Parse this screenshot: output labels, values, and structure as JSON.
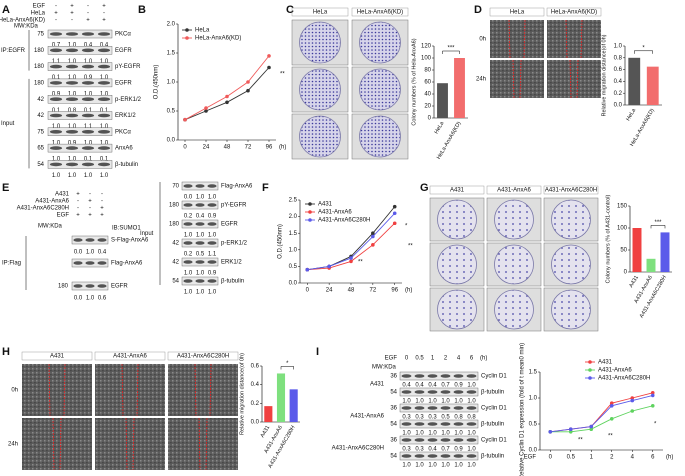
{
  "panel_labels": [
    "A",
    "B",
    "C",
    "D",
    "E",
    "F",
    "G",
    "H",
    "I"
  ],
  "blot_a": {
    "mw_header": "MW:KDa",
    "conditions": [
      {
        "label": "EGF",
        "signs": [
          "-",
          "+",
          "-",
          "+"
        ]
      },
      {
        "label": "HeLa",
        "signs": [
          "+",
          "+",
          "-",
          "-"
        ]
      },
      {
        "label": "HeLa-AnxA6(KD)",
        "signs": [
          "-",
          "-",
          "+",
          "+"
        ]
      }
    ],
    "groups": [
      {
        "label": "IP:EGFR",
        "rows": [
          {
            "mw": 75,
            "label": "PKCα",
            "values": [
              "0.7",
              "1.0",
              "0.4",
              "0.4"
            ]
          },
          {
            "mw": 180,
            "label": "EGFR",
            "values": [
              "1.1",
              "1.0",
              "1.0",
              "1.0"
            ]
          },
          {
            "mw": 180,
            "label": "pY-EGFR",
            "values": [
              "0.1",
              "1.0",
              "0.9",
              "1.0"
            ]
          }
        ]
      },
      {
        "label": "Input",
        "rows": [
          {
            "mw": 180,
            "label": "EGFR",
            "values": [
              "0.9",
              "1.0",
              "1.0",
              "1.0"
            ]
          },
          {
            "mw": 42,
            "label": "p-ERK1/2",
            "values": [
              "0.1",
              "0.8",
              "0.1",
              "0.1"
            ]
          },
          {
            "mw": 42,
            "label": "ERK1/2",
            "values": [
              "1.0",
              "1.0",
              "1.1",
              "1.0"
            ]
          },
          {
            "mw": 75,
            "label": "PKCα",
            "values": [
              "1.0",
              "0.9",
              "1.0",
              "1.0"
            ]
          },
          {
            "mw": 65,
            "label": "AnxA6",
            "values": [
              "1.0",
              "1.0",
              "0.1",
              "0.1"
            ]
          },
          {
            "mw": 54,
            "label": "β-tubulin",
            "values": [
              "1.0",
              "1.0",
              "1.0",
              "1.0"
            ]
          }
        ]
      }
    ]
  },
  "blot_e_left": {
    "mw_header": "MW:KDa",
    "ib": "IB:SUMO1",
    "conditions": [
      {
        "label": "A431",
        "signs": [
          "+",
          "-",
          "-"
        ]
      },
      {
        "label": "A431-AnxA6",
        "signs": [
          "-",
          "+",
          "-"
        ]
      },
      {
        "label": "A431-AnxA6C280H",
        "signs": [
          "-",
          "-",
          "+"
        ]
      },
      {
        "label": "EGF",
        "signs": [
          "+",
          "+",
          "+"
        ]
      }
    ],
    "groups": [
      {
        "label": "IP:Flag",
        "rows": [
          {
            "label": "S-Flag-AnxA6",
            "values": [
              "0.0",
              "1.0",
              "0.4"
            ]
          },
          {
            "label": "Flag-AnxA6"
          },
          {
            "mw": 180,
            "label": "EGFR",
            "values": [
              "0.0",
              "1.0",
              "0.6"
            ]
          }
        ]
      }
    ]
  },
  "blot_e_right": {
    "groups": [
      {
        "label": "Input",
        "rows": [
          {
            "mw": 70,
            "label": "Flag-AnxA6",
            "values": [
              "0.0",
              "1.0",
              "1.0"
            ]
          },
          {
            "mw": 180,
            "label": "pY-EGFR",
            "values": [
              "0.2",
              "0.4",
              "0.9"
            ]
          },
          {
            "mw": 180,
            "label": "EGFR",
            "values": [
              "1.0",
              "1.0",
              "1.0"
            ]
          },
          {
            "mw": 42,
            "label": "p-ERK1/2",
            "values": [
              "0.2",
              "0.5",
              "1.1"
            ]
          },
          {
            "mw": 42,
            "label": "ERK1/2",
            "values": [
              "1.0",
              "1.0",
              "0.9"
            ]
          },
          {
            "mw": 54,
            "label": "β-tubulin",
            "values": [
              "1.0",
              "1.0",
              "1.0"
            ]
          }
        ]
      }
    ]
  },
  "blot_i": {
    "mw_header": "MW:KDa",
    "conditions": [
      {
        "label": "EGF",
        "signs": [
          "0",
          "0.5",
          "1",
          "2",
          "4",
          "6"
        ]
      }
    ],
    "unit": "(h)",
    "groups": [
      {
        "label": "A431",
        "rows": [
          {
            "mw": 36,
            "label": "Cyclin D1",
            "values": [
              "0.4",
              "0.4",
              "0.4",
              "0.7",
              "0.9",
              "1.0"
            ]
          },
          {
            "mw": 54,
            "label": "β-tubulin",
            "values": [
              "1.0",
              "1.0",
              "1.0",
              "1.0",
              "1.0",
              "1.0"
            ]
          }
        ]
      },
      {
        "label": "A431-AnxA6",
        "rows": [
          {
            "mw": 36,
            "label": "Cyclin D1",
            "values": [
              "0.3",
              "0.3",
              "0.3",
              "0.5",
              "0.8",
              "0.8"
            ]
          },
          {
            "mw": 54,
            "label": "β-tubulin",
            "values": [
              "1.0",
              "1.0",
              "1.0",
              "1.0",
              "1.0",
              "1.0"
            ]
          }
        ]
      },
      {
        "label": "A431-AnxA6C280H",
        "rows": [
          {
            "mw": 36,
            "label": "Cyclin D1",
            "values": [
              "0.3",
              "0.3",
              "0.4",
              "0.7",
              "0.9",
              "1.0"
            ]
          },
          {
            "mw": 54,
            "label": "β-tubulin",
            "values": [
              "1.0",
              "1.0",
              "1.0",
              "1.0",
              "1.0",
              "1.0"
            ]
          }
        ]
      }
    ]
  },
  "plates_c": {
    "columns": [
      "HeLa",
      "HeLa-AnxA6(KD)"
    ]
  },
  "wound_d": {
    "columns": [
      "HeLa",
      "HeLa-AnxA6(KD)"
    ],
    "rows": [
      "0h",
      "24h"
    ]
  },
  "plates_g": {
    "columns": [
      "A431",
      "A431-AnxA6",
      "A431-AnxA6C280H"
    ]
  },
  "wound_h": {
    "columns": [
      "A431",
      "A431-AnxA6",
      "A431-AnxA6C280H"
    ],
    "rows": [
      "0h",
      "24h"
    ]
  },
  "chart_data": [
    {
      "type": "line",
      "ylabel": "O.D.(450nm)",
      "xlabel": "(h)",
      "x": [
        0,
        24,
        48,
        72,
        96
      ],
      "xlim": [
        -8,
        104
      ],
      "xticks": [
        0,
        24,
        48,
        72,
        96
      ],
      "ylim": [
        0,
        2
      ],
      "yticks": [
        {
          "value": 0,
          "label": "0.0"
        },
        0.5,
        {
          "value": 1,
          "label": "1.0"
        },
        1.5,
        {
          "value": 2,
          "label": "2.0"
        }
      ],
      "series": [
        {
          "name": "HeLa",
          "color": "#333333",
          "values": [
            0.35,
            0.5,
            0.65,
            0.85,
            1.25
          ]
        },
        {
          "name": "HeLa-AnxA6(KD)",
          "color": "#f05a5a",
          "values": [
            0.35,
            0.55,
            0.75,
            1.0,
            1.45
          ]
        }
      ],
      "annotations": [
        "**"
      ]
    },
    {
      "type": "bar",
      "ylabel": "Colony numbers (% of Hela-AnxA6)",
      "categories": [
        "HeLa",
        "HeLa-AnxA6(KD)"
      ],
      "values": [
        58,
        100
      ],
      "colors": [
        "#555555",
        "#f26d6d"
      ],
      "ylim": [
        0,
        120
      ],
      "yticks": [
        0,
        20,
        40,
        60,
        80,
        100,
        120
      ],
      "annotations": [
        "***"
      ]
    },
    {
      "type": "bar",
      "ylabel": "Relative migration distance(of 0h)",
      "categories": [
        "HeLa",
        "HeLa-AnxA6(KD)"
      ],
      "values": [
        0.8,
        0.65
      ],
      "colors": [
        "#555555",
        "#f26d6d"
      ],
      "ylim": [
        0,
        1
      ],
      "yticks": [
        {
          "value": 0,
          "label": "0.0"
        },
        0.2,
        0.4,
        0.6,
        0.8,
        {
          "value": 1,
          "label": "1.0"
        }
      ],
      "annotations": [
        "*"
      ]
    },
    {
      "type": "line",
      "ylabel": "O.D.(450nm)",
      "xlabel": "(h)",
      "x": [
        0,
        24,
        48,
        72,
        96
      ],
      "xlim": [
        -8,
        104
      ],
      "xticks": [
        0,
        24,
        48,
        72,
        96
      ],
      "ylim": [
        0,
        2.5
      ],
      "yticks": [
        {
          "value": 0,
          "label": "0.0"
        },
        0.5,
        {
          "value": 1,
          "label": "1.0"
        },
        1.5,
        {
          "value": 2,
          "label": "2.0"
        },
        2.5
      ],
      "series": [
        {
          "name": "A431",
          "color": "#333333",
          "values": [
            0.4,
            0.5,
            0.8,
            1.5,
            2.3
          ]
        },
        {
          "name": "A431-AnxA6",
          "color": "#f04040",
          "values": [
            0.4,
            0.45,
            0.65,
            1.15,
            1.8
          ]
        },
        {
          "name": "A431-AnxA6C280H",
          "color": "#5b5bea",
          "values": [
            0.4,
            0.5,
            0.75,
            1.4,
            2.1
          ]
        }
      ],
      "annotations": [
        "*",
        "**",
        "**"
      ]
    },
    {
      "type": "bar",
      "ylabel": "Colony numbers (% of A431-control)",
      "categories": [
        "A431",
        "A431-AnxA6",
        "A431-AnxA6C280H"
      ],
      "values": [
        100,
        30,
        90
      ],
      "colors": [
        "#f04040",
        "#7ee07e",
        "#5b5bea"
      ],
      "ylim": [
        0,
        150
      ],
      "yticks": [
        0,
        50,
        100,
        150
      ],
      "annotations": [
        "***"
      ]
    },
    {
      "type": "bar",
      "ylabel": "Relative migration distance(of 0h)",
      "categories": [
        "A431",
        "A431-AnxA6",
        "A431-AnxA6C280H"
      ],
      "values": [
        0.17,
        0.52,
        0.35
      ],
      "colors": [
        "#f04040",
        "#7ee07e",
        "#5b5bea"
      ],
      "ylim": [
        0,
        0.6
      ],
      "yticks": [
        {
          "value": 0,
          "label": "0.0"
        },
        0.2,
        0.4,
        0.6
      ],
      "annotations": [
        "*"
      ]
    },
    {
      "type": "line",
      "ylabel": "Relative Cyclin D1 expression (fold of t mean0 min)",
      "xlabel": "(h)",
      "x_prefix": "EGF",
      "categories": [
        "0",
        "0.5",
        "1",
        "2",
        "4",
        "6"
      ],
      "ylim": [
        0,
        1.5
      ],
      "yticks": [
        {
          "value": 0,
          "label": "0.0"
        },
        0.5,
        {
          "value": 1,
          "label": "1.0"
        },
        1.5
      ],
      "series": [
        {
          "name": "A431",
          "color": "#f04040",
          "values": [
            0.35,
            0.4,
            0.45,
            0.9,
            1.0,
            1.1
          ]
        },
        {
          "name": "A431-AnxA6",
          "color": "#5fd35f",
          "values": [
            0.35,
            0.35,
            0.4,
            0.6,
            0.75,
            0.85
          ]
        },
        {
          "name": "A431-AnxA6C280H",
          "color": "#5b5bea",
          "values": [
            0.35,
            0.4,
            0.45,
            0.85,
            0.95,
            1.05
          ]
        }
      ],
      "annotations": [
        "**",
        "**",
        "*"
      ]
    }
  ]
}
